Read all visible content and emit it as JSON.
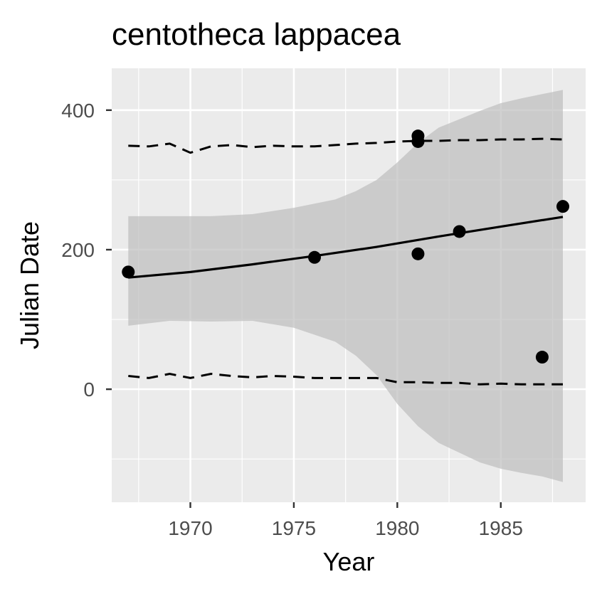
{
  "chart_data": {
    "type": "scatter",
    "title": "centotheca lappacea",
    "xlabel": "Year",
    "ylabel": "Julian Date",
    "xlim": [
      1966.2,
      1989.1
    ],
    "ylim": [
      -162,
      460
    ],
    "x_ticks": [
      1970,
      1975,
      1980,
      1985
    ],
    "y_ticks": [
      0,
      200,
      400
    ],
    "grid": true,
    "background": "#ebebeb",
    "colors": {
      "points": "#000000",
      "trend": "#000000",
      "ribbon": "#bebebe",
      "grid": "#ffffff"
    },
    "points": [
      {
        "x": 1967,
        "y": 168
      },
      {
        "x": 1976,
        "y": 189
      },
      {
        "x": 1981,
        "y": 363
      },
      {
        "x": 1981,
        "y": 355
      },
      {
        "x": 1981,
        "y": 194
      },
      {
        "x": 1983,
        "y": 226
      },
      {
        "x": 1987,
        "y": 46
      },
      {
        "x": 1988,
        "y": 262
      }
    ],
    "trend_line": {
      "x": [
        1967,
        1970,
        1973,
        1976,
        1979,
        1982,
        1985,
        1988
      ],
      "y": [
        160,
        168,
        179,
        191,
        204,
        219,
        233,
        247
      ]
    },
    "confidence_band": {
      "x": [
        1967,
        1969,
        1971,
        1973,
        1975,
        1977,
        1978,
        1979,
        1980,
        1981,
        1982,
        1983,
        1984,
        1985,
        1986,
        1987,
        1988
      ],
      "upper": [
        248,
        248,
        248,
        251,
        260,
        272,
        284,
        300,
        325,
        353,
        375,
        387,
        399,
        410,
        417,
        423,
        429
      ],
      "lower": [
        91,
        98,
        97,
        98,
        88,
        68,
        48,
        20,
        -21,
        -53,
        -77,
        -91,
        -105,
        -114,
        -120,
        -125,
        -133
      ]
    },
    "upper_quantile": {
      "x": [
        1967,
        1968,
        1969,
        1970,
        1971,
        1972,
        1973,
        1974,
        1975,
        1976,
        1977,
        1978,
        1979,
        1980,
        1981,
        1982,
        1983,
        1984,
        1985,
        1986,
        1987,
        1988
      ],
      "y": [
        349,
        348,
        352,
        339,
        348,
        350,
        347,
        349,
        348,
        348,
        350,
        352,
        353,
        355,
        356,
        356,
        357,
        357,
        358,
        358,
        359,
        358
      ]
    },
    "lower_quantile": {
      "x": [
        1967,
        1968,
        1969,
        1970,
        1971,
        1972,
        1973,
        1974,
        1975,
        1976,
        1977,
        1978,
        1979,
        1980,
        1981,
        1982,
        1983,
        1984,
        1985,
        1986,
        1987,
        1988
      ],
      "y": [
        19,
        16,
        22,
        16,
        22,
        19,
        17,
        19,
        18,
        16,
        16,
        16,
        16,
        10,
        10,
        9,
        9,
        7,
        8,
        7,
        7,
        7
      ]
    }
  }
}
